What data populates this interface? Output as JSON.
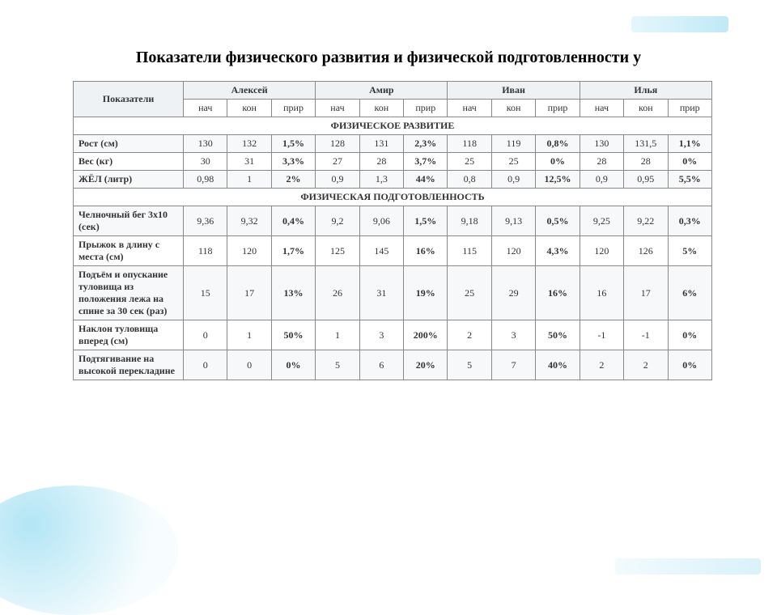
{
  "title": "Показатели физического развития и физической подготовленности у",
  "headers": {
    "indicator": "Показатели",
    "students": [
      "Алексей",
      "Амир",
      "Иван",
      "Илья"
    ],
    "sub": [
      "нач",
      "кон",
      "прир"
    ]
  },
  "sections": [
    {
      "label": "ФИЗИЧЕСКОЕ РАЗВИТИЕ"
    },
    {
      "label": "ФИЗИЧЕСКАЯ ПОДГОТОВЛЕННОСТЬ"
    }
  ],
  "rows1": [
    {
      "label": "Рост (см)",
      "v": [
        "130",
        "132",
        "1,5%",
        "128",
        "131",
        "2,3%",
        "118",
        "119",
        "0,8%",
        "130",
        "131,5",
        "1,1%"
      ]
    },
    {
      "label": "Вес (кг)",
      "v": [
        "30",
        "31",
        "3,3%",
        "27",
        "28",
        "3,7%",
        "25",
        "25",
        "0%",
        "28",
        "28",
        "0%"
      ]
    },
    {
      "label": "ЖЁЛ (литр)",
      "v": [
        "0,98",
        "1",
        "2%",
        "0,9",
        "1,3",
        "44%",
        "0,8",
        "0,9",
        "12,5%",
        "0,9",
        "0,95",
        "5,5%"
      ]
    }
  ],
  "rows2": [
    {
      "label": "Челночный бег 3х10 (сек)",
      "v": [
        "9,36",
        "9,32",
        "0,4%",
        "9,2",
        "9,06",
        "1,5%",
        "9,18",
        "9,13",
        "0,5%",
        "9,25",
        "9,22",
        "0,3%"
      ]
    },
    {
      "label": "Прыжок в длину с места (см)",
      "v": [
        "118",
        "120",
        "1,7%",
        "125",
        "145",
        "16%",
        "115",
        "120",
        "4,3%",
        "120",
        "126",
        "5%"
      ]
    },
    {
      "label": "Подъём и опускание туловища из положения лежа на спине за 30 сек (раз)",
      "v": [
        "15",
        "17",
        "13%",
        "26",
        "31",
        "19%",
        "25",
        "29",
        "16%",
        "16",
        "17",
        "6%"
      ]
    },
    {
      "label": "Наклон туловища вперед (см)",
      "v": [
        "0",
        "1",
        "50%",
        "1",
        "3",
        "200%",
        "2",
        "3",
        "50%",
        "-1",
        "-1",
        "0%"
      ]
    },
    {
      "label": "Подтягивание на высокой перекладине",
      "v": [
        "0",
        "0",
        "0%",
        "5",
        "6",
        "20%",
        "5",
        "7",
        "40%",
        "2",
        "2",
        "0%"
      ]
    }
  ],
  "style": {
    "title_fontsize": 20,
    "table_fontsize": 12,
    "border_color": "#888888",
    "header_bg": "#eef2f5",
    "stripe_bg": "#f6f8fa",
    "text_color": "#333333",
    "accent_color": "#00aadc"
  }
}
